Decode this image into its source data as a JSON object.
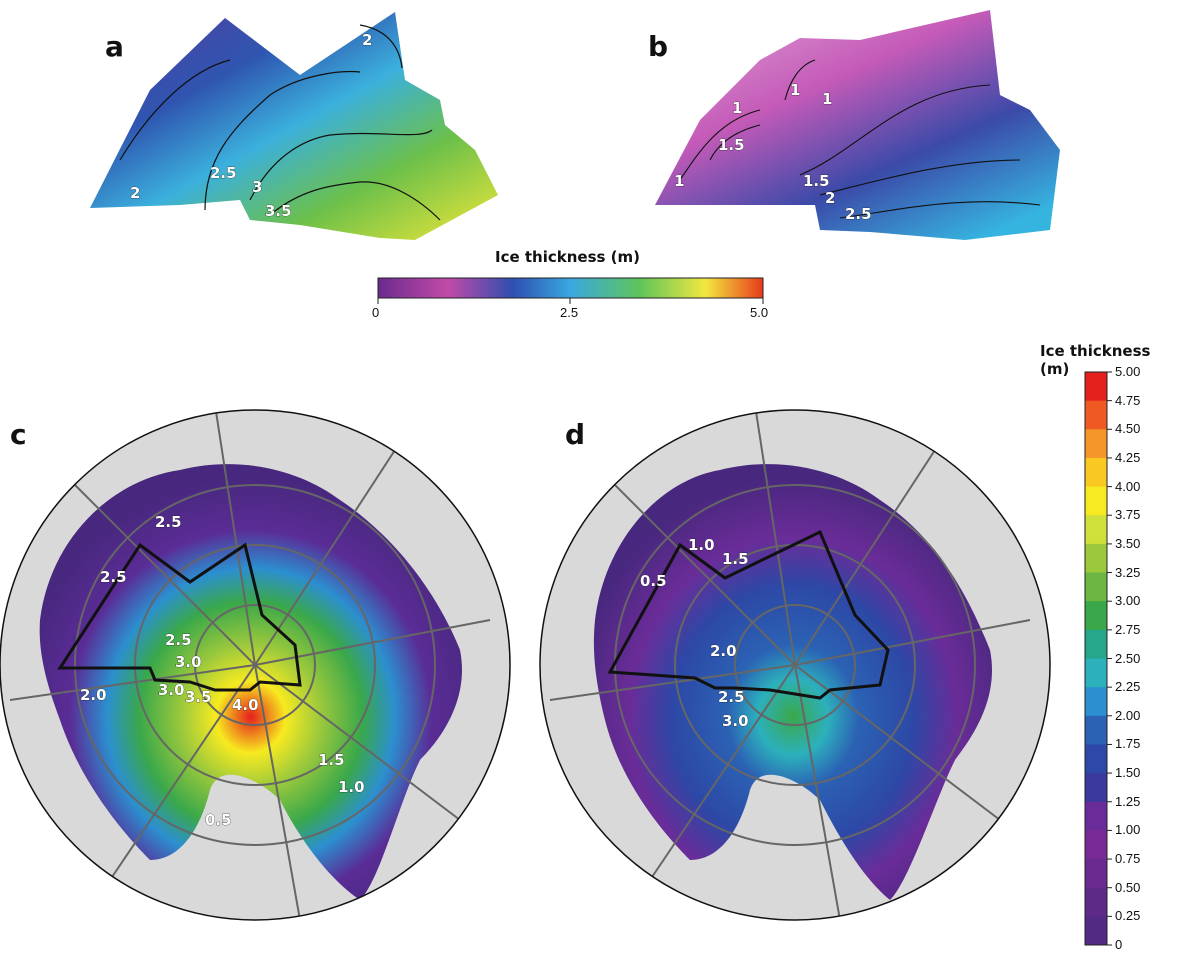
{
  "panel_labels": [
    "a",
    "b",
    "c",
    "d"
  ],
  "top_colorbar": {
    "title": "Ice thickness (m)",
    "ticks": [
      "0",
      "2.5",
      "5.0"
    ],
    "colors": [
      "#6a2a8e",
      "#c24aa8",
      "#2e4fb0",
      "#3aa8e0",
      "#5ec45a",
      "#f2e840",
      "#e83a1c"
    ]
  },
  "right_colorbar": {
    "title": "Ice thickness (m)",
    "ticks": [
      "5.00",
      "4.75",
      "4.50",
      "4.25",
      "4.00",
      "3.75",
      "3.50",
      "3.25",
      "3.00",
      "2.75",
      "2.50",
      "2.25",
      "2.00",
      "1.75",
      "1.50",
      "1.25",
      "1.00",
      "0.75",
      "0.50",
      "0.25",
      "0"
    ],
    "colors": [
      "#e4201c",
      "#ee5a22",
      "#f5962a",
      "#f9c823",
      "#f7ea20",
      "#cfe03a",
      "#9cc93c",
      "#6cb644",
      "#3aa84a",
      "#26a68a",
      "#2cb0bc",
      "#2c8fcf",
      "#2b62b4",
      "#2d48a6",
      "#3a3a9e",
      "#6a2c98",
      "#7a2a96",
      "#6a2a90",
      "#5e2a88",
      "#522a84",
      "#48287e"
    ]
  },
  "panel_a_contours": [
    "2",
    "2.5",
    "3",
    "3.5",
    "2"
  ],
  "panel_b_contours": [
    "1",
    "1",
    "1",
    "1.5",
    "1",
    "1.5",
    "2",
    "2.5"
  ],
  "panel_c_contours": [
    "2.5",
    "2.5",
    "2.5",
    "3.0",
    "3.0",
    "3.5",
    "4.0",
    "2.0",
    "1.5",
    "1.0",
    "0.5"
  ],
  "panel_d_contours": [
    "1.0",
    "1.5",
    "0.5",
    "2.0",
    "2.5",
    "3.0"
  ]
}
